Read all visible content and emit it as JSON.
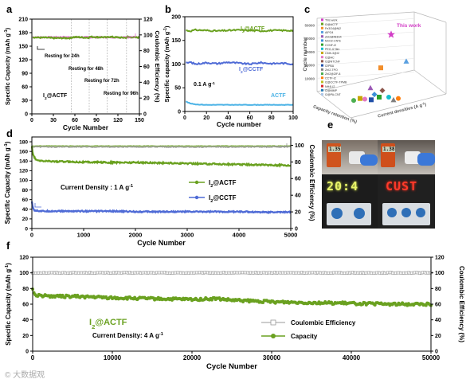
{
  "watermark": "© 大数据观",
  "colors": {
    "actf": "#6aa120",
    "actf_light": "#92c440",
    "cctf": "#4f6bd6",
    "ce_pink": "#e56ad6",
    "ce_gray": "#8e8e8e",
    "vline": "#b9b9b9"
  },
  "panels": {
    "a": {
      "letter": "a",
      "xlabel": "Cycle Number",
      "ylabel": "Specific Capacity (mAh g",
      "ylabel_sup": "-1",
      "ylabel_end": ")",
      "ylabel2": "Coulombic Efficiency (%)",
      "xticks": [
        "0",
        "30",
        "60",
        "90",
        "120",
        "150"
      ],
      "yticks": [
        "0",
        "30",
        "60",
        "90",
        "120",
        "150",
        "180",
        "210"
      ],
      "y2ticks": [
        "0",
        "20",
        "40",
        "60",
        "80",
        "100",
        "120"
      ],
      "series_label": "I",
      "series_label_sub": "2",
      "series_label_end": "@ACTF",
      "annotations": [
        "Resting for 24h",
        "Resting for 48h",
        "Resting for 72h",
        "Resting for 96h"
      ]
    },
    "b": {
      "letter": "b",
      "xlabel": "Cycle number",
      "ylabel": "Specific capacity (mAh g",
      "ylabel_sup": "-1",
      "ylabel_end": ")",
      "xticks": [
        "0",
        "20",
        "40",
        "60",
        "80",
        "100"
      ],
      "yticks": [
        "0",
        "50",
        "100",
        "150",
        "200"
      ],
      "labels": [
        {
          "pre": "I",
          "sub": "2",
          "post": "@ACTF"
        },
        {
          "pre": "I",
          "sub": "2",
          "post": "@CCTF"
        },
        {
          "pre": "ACTF",
          "sub": "",
          "post": ""
        }
      ],
      "rate_label": "0.1 A g",
      "rate_sup": "-1"
    },
    "c": {
      "letter": "c",
      "this_work": "This work",
      "zlabel": "Cycle number",
      "zticks": [
        "10000",
        "20000",
        "30000",
        "40000",
        "50000"
      ],
      "xlabel": "Capacity retention (%)",
      "ylabel": "Current densities (A g",
      "ylabel_sup": "-1",
      "ylabel_end": ")",
      "legend": [
        "This work",
        "I2@ACTF",
        "Fe3O4@Ni2",
        "AlPO4",
        "ZnI2@Ni3S4",
        "MnO2-CNTs",
        "CCNF-I2",
        "PEG-I2 film",
        "CMK-3@I2",
        "I2@AC",
        "I2@NTCNF",
        "I2/PBA",
        "ZnI2-TPO",
        "ZnI2@ZIF-8",
        "CCTF-I2",
        "I2@CCTF-TPMB",
        "NH4I-I2",
        "I2@MMP",
        "I2@PA-CNT"
      ]
    },
    "d": {
      "letter": "d",
      "xlabel": "Cycle Number",
      "ylabel": "Specific  Capacity (mAh g",
      "ylabel_sup": "-1",
      "ylabel_end": ")",
      "ylabel2": "Coulombic Efficiency (%)",
      "xticks": [
        "0",
        "1000",
        "2000",
        "3000",
        "4000",
        "5000"
      ],
      "yticks": [
        "0",
        "20",
        "40",
        "60",
        "80",
        "100",
        "120",
        "140",
        "160",
        "180"
      ],
      "y2ticks": [
        "0",
        "20",
        "40",
        "60",
        "80",
        "100"
      ],
      "current": "Current Density : 1 A g",
      "current_sup": "-1",
      "legend": [
        {
          "pre": "I",
          "sub": "2",
          "post": "@ACTF"
        },
        {
          "pre": "I",
          "sub": "2",
          "post": "@CCTF"
        }
      ]
    },
    "e": {
      "letter": "e",
      "meter1": "1.35",
      "meter2": "1.38",
      "led1": "20:4",
      "led2": "CUST"
    },
    "f": {
      "letter": "f",
      "xlabel": "Cycle Number",
      "ylabel": "Specific Capacity (mAh g",
      "ylabel_sup": "-1",
      "ylabel_end": ")",
      "ylabel2": "Coulombic Efficiency (%)",
      "xticks": [
        "0",
        "10000",
        "20000",
        "30000",
        "40000",
        "50000"
      ],
      "yticks": [
        "0",
        "20",
        "40",
        "60",
        "80",
        "100",
        "120"
      ],
      "y2ticks": [
        "0",
        "20",
        "40",
        "60",
        "80",
        "100",
        "120"
      ],
      "series_label": "I",
      "series_label_sub": "2",
      "series_label_end": "@ACTF",
      "current": "Current Density: 4 A g",
      "current_sup": "-1",
      "legend_ce": "Coulombic Efficiency",
      "legend_cap": "Capacity"
    }
  },
  "chart_data": [
    {
      "panel": "a",
      "type": "line",
      "x_range": [
        0,
        150
      ],
      "ylim": [
        0,
        210
      ],
      "y2lim": [
        0,
        120
      ],
      "rest_points": [
        55,
        80,
        105,
        132
      ],
      "series": [
        {
          "name": "Capacity",
          "x": [
            1,
            10,
            20,
            30,
            40,
            50,
            55,
            56,
            65,
            75,
            80,
            81,
            90,
            100,
            105,
            106,
            115,
            125,
            132,
            133,
            140,
            150
          ],
          "y": [
            170,
            169,
            169,
            168,
            168,
            168,
            168,
            170,
            170,
            169,
            169,
            171,
            170,
            170,
            169,
            171,
            170,
            169,
            169,
            171,
            170,
            169
          ]
        },
        {
          "name": "Coulombic Efficiency",
          "axis": "right",
          "x": [
            1,
            30,
            55,
            80,
            105,
            132,
            150
          ],
          "y": [
            97,
            97,
            97,
            97,
            97,
            97,
            97
          ]
        }
      ]
    },
    {
      "panel": "b",
      "type": "line",
      "x_range": [
        0,
        100
      ],
      "ylim": [
        0,
        200
      ],
      "series": [
        {
          "name": "I2@ACTF",
          "x": [
            1,
            5,
            10,
            20,
            30,
            40,
            50,
            60,
            70,
            80,
            90,
            100
          ],
          "y": [
            171,
            170,
            172,
            171,
            170,
            171,
            172,
            171,
            170,
            171,
            171,
            171
          ]
        },
        {
          "name": "I2@CCTF",
          "x": [
            1,
            5,
            10,
            20,
            30,
            40,
            50,
            60,
            70,
            80,
            90,
            100
          ],
          "y": [
            102,
            104,
            100,
            103,
            101,
            104,
            102,
            100,
            103,
            101,
            102,
            100
          ]
        },
        {
          "name": "ACTF",
          "x": [
            1,
            5,
            10,
            20,
            30,
            40,
            50,
            60,
            70,
            80,
            90,
            100
          ],
          "y": [
            21,
            17,
            15,
            14,
            14,
            14,
            14,
            14,
            14,
            14,
            14,
            14
          ]
        }
      ]
    },
    {
      "panel": "c",
      "type": "scatter",
      "zlim": [
        0,
        55000
      ],
      "series": [
        {
          "name": "This work",
          "cycles": 50000
        },
        {
          "name": "others",
          "cycles": [
            30000,
            25000,
            15000,
            10000,
            10000,
            8000,
            5000,
            5000,
            3000,
            3000,
            2000,
            2000,
            1500,
            1000,
            1000,
            1000,
            500
          ]
        }
      ]
    },
    {
      "panel": "d",
      "type": "line",
      "x_range": [
        0,
        5000
      ],
      "ylim": [
        0,
        190
      ],
      "y2lim": [
        0,
        110
      ],
      "series": [
        {
          "name": "I2@ACTF",
          "x": [
            0,
            20,
            50,
            100,
            200,
            300,
            500,
            1000,
            1500,
            2000,
            2500,
            3000,
            3500,
            4000,
            4500,
            5000
          ],
          "y": [
            170,
            155,
            146,
            141,
            140,
            140,
            139,
            138,
            137,
            137,
            136,
            135,
            134,
            133,
            132,
            131
          ]
        },
        {
          "name": "I2@CCTF",
          "x": [
            0,
            20,
            50,
            100,
            200,
            300,
            500,
            1000,
            1500,
            2000,
            2500,
            3000,
            3500,
            4000,
            4500,
            5000
          ],
          "y": [
            55,
            44,
            38,
            37,
            36,
            36,
            36,
            36,
            36,
            35,
            35,
            35,
            35,
            35,
            34,
            34
          ]
        },
        {
          "name": "Coulombic Efficiency (I2@ACTF)",
          "axis": "right",
          "x": [
            0,
            5000
          ],
          "y": [
            99,
            99
          ]
        },
        {
          "name": "Coulombic Efficiency (I2@CCTF)",
          "axis": "right",
          "x": [
            0,
            5000
          ],
          "y": [
            98,
            98
          ]
        }
      ]
    },
    {
      "panel": "f",
      "type": "line",
      "x_range": [
        0,
        50000
      ],
      "ylim": [
        0,
        120
      ],
      "y2lim": [
        0,
        120
      ],
      "series": [
        {
          "name": "Capacity",
          "x": [
            0,
            300,
            1000,
            3000,
            5000,
            8000,
            10000,
            15000,
            20000,
            23000,
            25000,
            30000,
            35000,
            40000,
            45000,
            50000
          ],
          "y": [
            80,
            72,
            71,
            70,
            70,
            69,
            68,
            67,
            66,
            67,
            65,
            63,
            62,
            61,
            60,
            60
          ]
        },
        {
          "name": "Coulombic Efficiency",
          "axis": "right",
          "x": [
            0,
            50000
          ],
          "y": [
            100,
            100
          ]
        }
      ]
    }
  ]
}
